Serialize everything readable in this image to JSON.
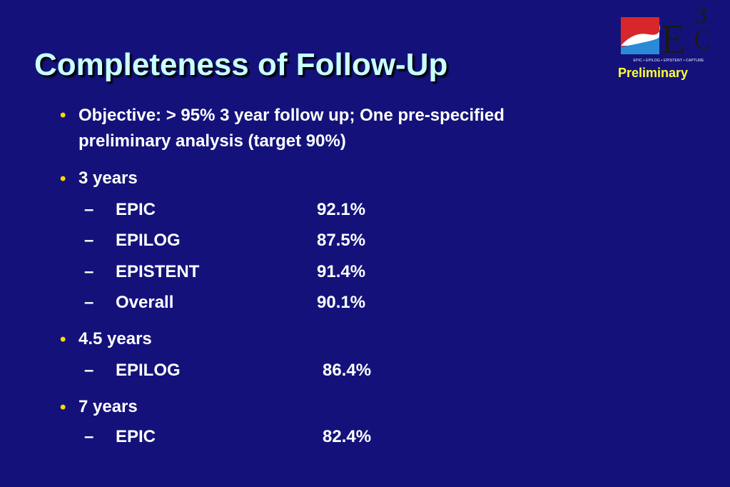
{
  "title": "Completeness of Follow-Up",
  "badge": "Preliminary",
  "logo": {
    "letters": "E",
    "superscript": "3",
    "subscript": "C",
    "tagline": "EPIC • EPILOG • EPISTENT • CAPTURE"
  },
  "bullets": [
    {
      "marker": "•",
      "lines": [
        "Objective: > 95% 3 year follow up; One pre-specified",
        "preliminary analysis (target 90%)"
      ]
    },
    {
      "marker": "•",
      "label": "3 years",
      "items": [
        {
          "dash": "–",
          "name": "EPIC",
          "value": "92.1%"
        },
        {
          "dash": "–",
          "name": "EPILOG",
          "value": "87.5%"
        },
        {
          "dash": "–",
          "name": "EPISTENT",
          "value": "91.4%"
        },
        {
          "dash": "–",
          "name": "Overall",
          "value": "90.1%"
        }
      ]
    },
    {
      "marker": "•",
      "label": "4.5 years",
      "items": [
        {
          "dash": "–",
          "name": "EPILOG",
          "value": "86.4%"
        }
      ]
    },
    {
      "marker": "•",
      "label": "7 years",
      "items": [
        {
          "dash": "–",
          "name": "EPIC",
          "value": "82.4%"
        }
      ]
    }
  ],
  "colors": {
    "background": "#14127a",
    "title": "#c8ffff",
    "bullet_marker": "#ffd700",
    "badge": "#ffff33"
  }
}
